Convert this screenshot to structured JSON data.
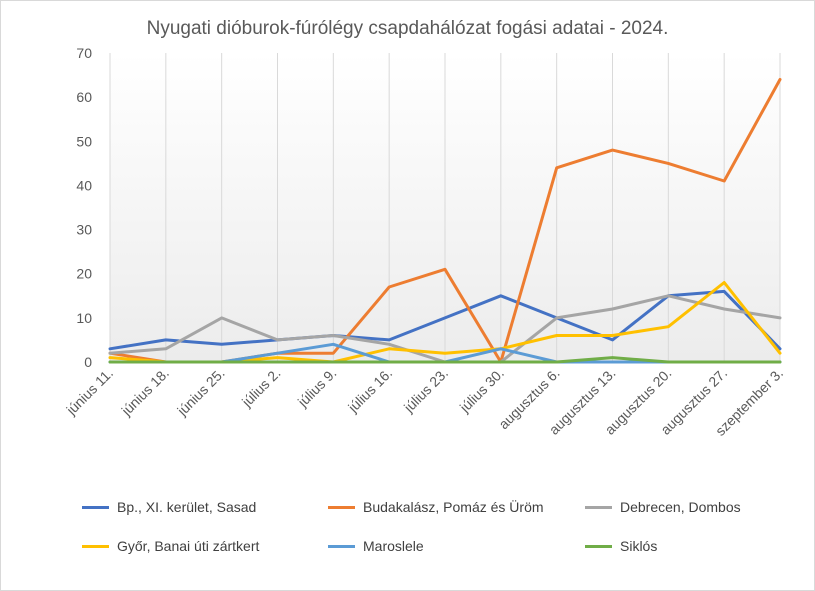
{
  "chart_data": {
    "type": "line",
    "title": "Nyugati dióburok-fúrólégy csapdahálózat fogási adatai - 2024.",
    "xlabel": "",
    "ylabel": "",
    "ylim": [
      0,
      70
    ],
    "yticks": [
      0,
      10,
      20,
      30,
      40,
      50,
      60,
      70
    ],
    "grid": "vertical",
    "legend_position": "bottom",
    "categories": [
      "június 11.",
      "június 18.",
      "június 25.",
      "július 2.",
      "július 9.",
      "július 16.",
      "július 23.",
      "július 30.",
      "augusztus 6.",
      "augusztus 13.",
      "augusztus 20.",
      "augusztus 27.",
      "szeptember 3."
    ],
    "series": [
      {
        "name": "Bp., XI. kerület, Sasad",
        "color": "#4472c4",
        "values": [
          3,
          5,
          4,
          5,
          6,
          5,
          10,
          15,
          10,
          5,
          15,
          16,
          3
        ]
      },
      {
        "name": "Budakalász, Pomáz és Üröm",
        "color": "#ed7d31",
        "values": [
          2,
          0,
          0,
          2,
          2,
          17,
          21,
          0,
          44,
          48,
          45,
          41,
          64
        ]
      },
      {
        "name": "Debrecen, Dombos",
        "color": "#a5a5a5",
        "values": [
          2,
          3,
          10,
          5,
          6,
          4,
          0,
          0,
          10,
          12,
          15,
          12,
          10
        ]
      },
      {
        "name": "Győr, Banai úti zártkert",
        "color": "#ffc000",
        "values": [
          1,
          0,
          0,
          1,
          0,
          3,
          2,
          3,
          6,
          6,
          8,
          18,
          2
        ]
      },
      {
        "name": "Maroslele",
        "color": "#5b9bd5",
        "values": [
          0,
          0,
          0,
          2,
          4,
          0,
          0,
          3,
          0,
          0,
          0,
          0,
          0
        ]
      },
      {
        "name": "Siklós",
        "color": "#70ad47",
        "values": [
          0,
          0,
          0,
          0,
          0,
          0,
          0,
          0,
          0,
          1,
          0,
          0,
          0
        ]
      }
    ]
  }
}
